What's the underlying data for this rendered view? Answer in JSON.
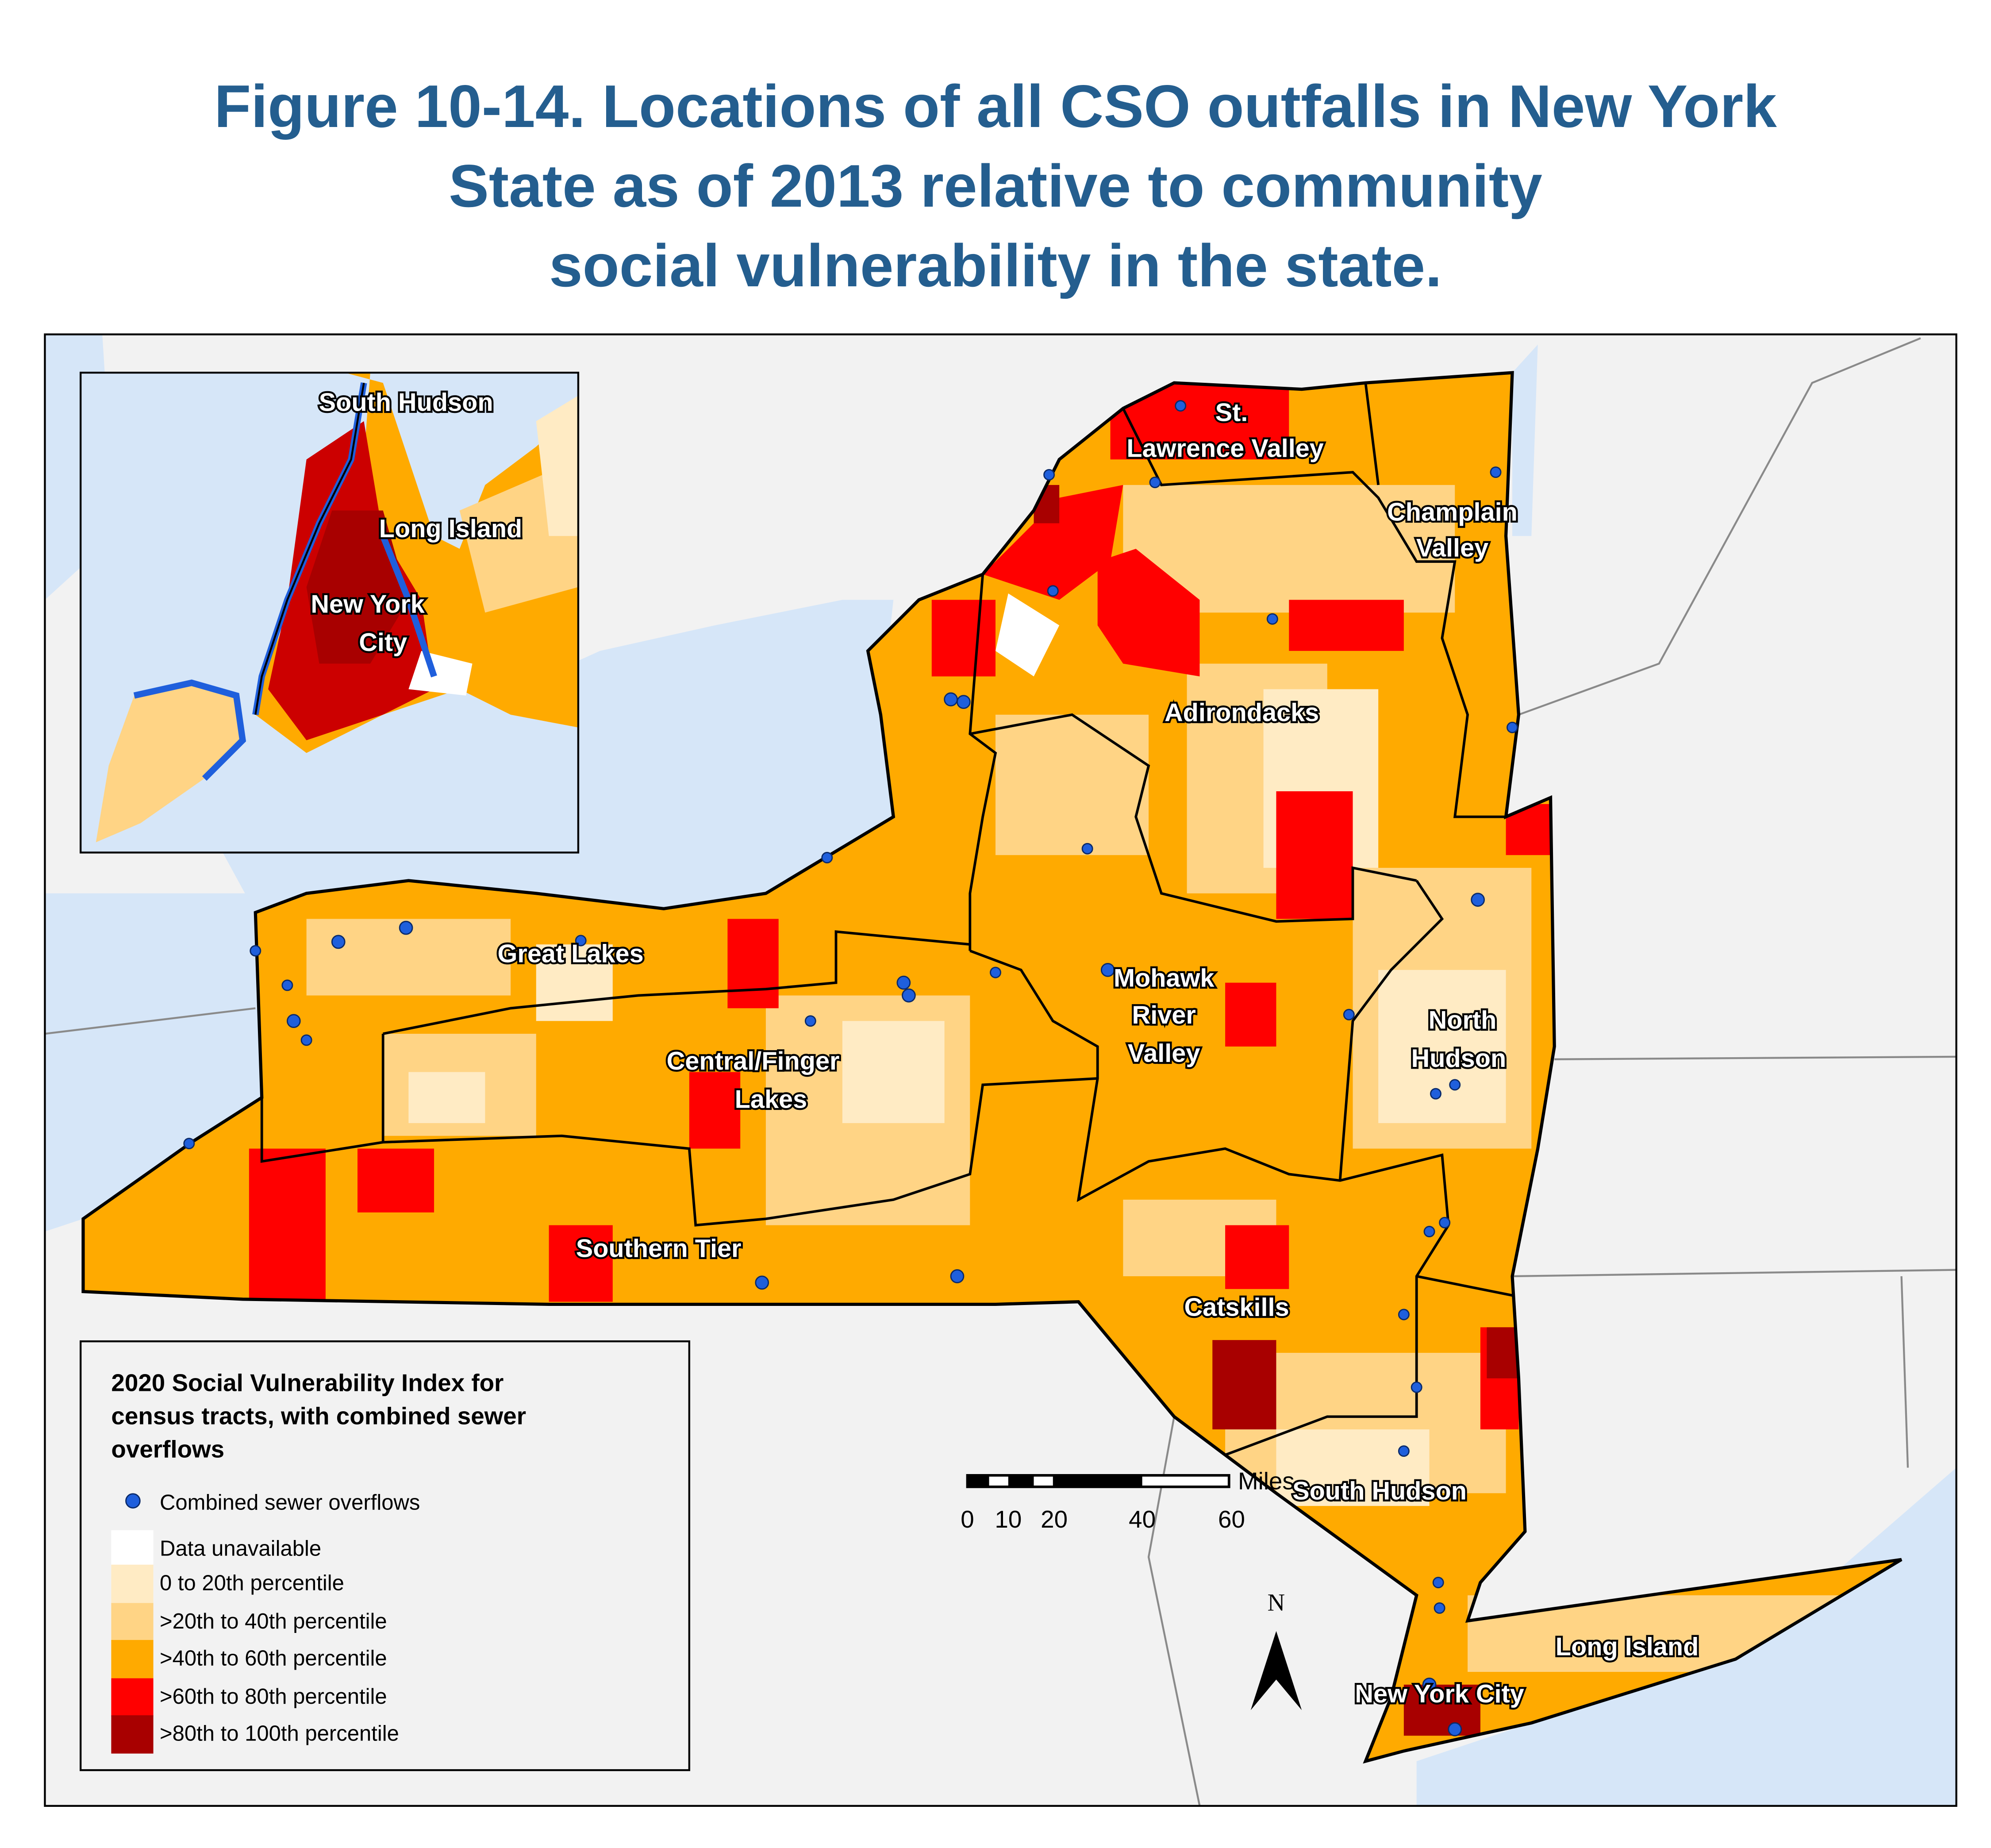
{
  "title": {
    "lines": [
      "Figure 10-14. Locations of all CSO outfalls in New York",
      "State as of 2013 relative to community",
      "social vulnerability in the state."
    ]
  },
  "map": {
    "regions": {
      "st_lawrence_1": "St.",
      "st_lawrence_2": "Lawrence Valley",
      "champlain_1": "Champlain",
      "champlain_2": "Valley",
      "adirondacks": "Adirondacks",
      "great_lakes": "Great Lakes",
      "mohawk_1": "Mohawk",
      "mohawk_2": "River",
      "mohawk_3": "Valley",
      "north_hudson_1": "North",
      "north_hudson_2": "Hudson",
      "central_1": "Central/Finger",
      "central_2": "Lakes",
      "southern_tier": "Southern Tier",
      "catskills": "Catskills",
      "south_hudson": "South Hudson",
      "long_island": "Long Island",
      "nyc": "New York City"
    },
    "inset": {
      "south_hudson": "South Hudson",
      "long_island": "Long Island",
      "nyc_1": "New York",
      "nyc_2": "City"
    },
    "colors": {
      "water": "#d6e6f8",
      "land_outside": "#f2f2f2",
      "cso_dot": "#1f5fdc",
      "title": "#245e8f"
    }
  },
  "legend": {
    "title_lines": [
      "2020 Social Vulnerability Index for",
      "census tracts, with combined sewer",
      "overflows"
    ],
    "items": [
      {
        "label": "Combined sewer overflows",
        "symbol": "dot",
        "color": "#1f5fdc"
      },
      {
        "label": "Data unavailable",
        "color": "#ffffff"
      },
      {
        "label": "0 to 20th percentile",
        "color": "#ffebc4"
      },
      {
        "label": ">20th to 40th percentile",
        "color": "#ffd485"
      },
      {
        "label": ">40th to 60th percentile",
        "color": "#ffaa00"
      },
      {
        "label": ">60th to 80th percentile",
        "color": "#ff0000"
      },
      {
        "label": ">80th to 100th percentile",
        "color": "#a80000"
      }
    ]
  },
  "scale_bar": {
    "unit": "Miles",
    "ticks": [
      "0",
      "10",
      "20",
      "40",
      "60"
    ]
  },
  "north_arrow": {
    "label": "N"
  }
}
